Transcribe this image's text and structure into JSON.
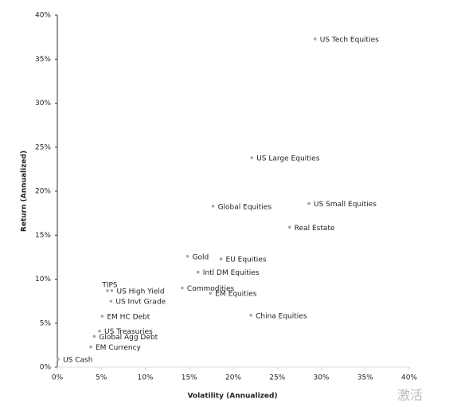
{
  "chart_data": {
    "type": "scatter",
    "xlabel": "Volatility (Annualized)",
    "ylabel": "Return (Annualized)",
    "color": "#a6a6a6",
    "points": [
      {
        "label": "US Tech Equities",
        "x": 29.3,
        "y": 37.3
      },
      {
        "label": "US Large Equities",
        "x": 22.1,
        "y": 23.8
      },
      {
        "label": "Global Equities",
        "x": 17.7,
        "y": 18.3
      },
      {
        "label": "US Small Equities",
        "x": 28.6,
        "y": 18.6
      },
      {
        "label": "Real Estate",
        "x": 26.4,
        "y": 15.9
      },
      {
        "label": "Gold",
        "x": 14.8,
        "y": 12.6
      },
      {
        "label": "EU Equities",
        "x": 18.6,
        "y": 12.3
      },
      {
        "label": "Intl DM Equities",
        "x": 16.0,
        "y": 10.8
      },
      {
        "label": "Commodities",
        "x": 14.2,
        "y": 9.0
      },
      {
        "label": "EM Equities",
        "x": 17.4,
        "y": 8.4
      },
      {
        "label": "China Equities",
        "x": 22.0,
        "y": 5.9
      },
      {
        "label": "TIPS",
        "x": 5.7,
        "y": 8.7
      },
      {
        "label": "US High Yield",
        "x": 6.2,
        "y": 8.7
      },
      {
        "label": "US Invt Grade",
        "x": 6.1,
        "y": 7.5
      },
      {
        "label": "EM HC Debt",
        "x": 5.1,
        "y": 5.8
      },
      {
        "label": "US Treasuries",
        "x": 4.8,
        "y": 4.1
      },
      {
        "label": "Global Agg Debt",
        "x": 4.2,
        "y": 3.5
      },
      {
        "label": "EM Currency",
        "x": 3.8,
        "y": 2.3
      },
      {
        "label": "US Cash",
        "x": 0.1,
        "y": 0.9
      }
    ],
    "xlim": [
      0,
      40
    ],
    "ylim": [
      0,
      40
    ],
    "xticks": [
      {
        "value": 0,
        "label": "0%"
      },
      {
        "value": 5,
        "label": "5%"
      },
      {
        "value": 10,
        "label": "10%"
      },
      {
        "value": 15,
        "label": "15%"
      },
      {
        "value": 20,
        "label": "20%"
      },
      {
        "value": 25,
        "label": "25%"
      },
      {
        "value": 30,
        "label": "30%"
      },
      {
        "value": 35,
        "label": "35%"
      },
      {
        "value": 40,
        "label": "40%"
      }
    ],
    "yticks": [
      {
        "value": 0,
        "label": "0%"
      },
      {
        "value": 5,
        "label": "5%"
      },
      {
        "value": 10,
        "label": "10%"
      },
      {
        "value": 15,
        "label": "15%"
      },
      {
        "value": 20,
        "label": "20%"
      },
      {
        "value": 25,
        "label": "25%"
      },
      {
        "value": 30,
        "label": "30%"
      },
      {
        "value": 35,
        "label": "35%"
      },
      {
        "value": 40,
        "label": "40%"
      }
    ],
    "watermark": "激活"
  }
}
